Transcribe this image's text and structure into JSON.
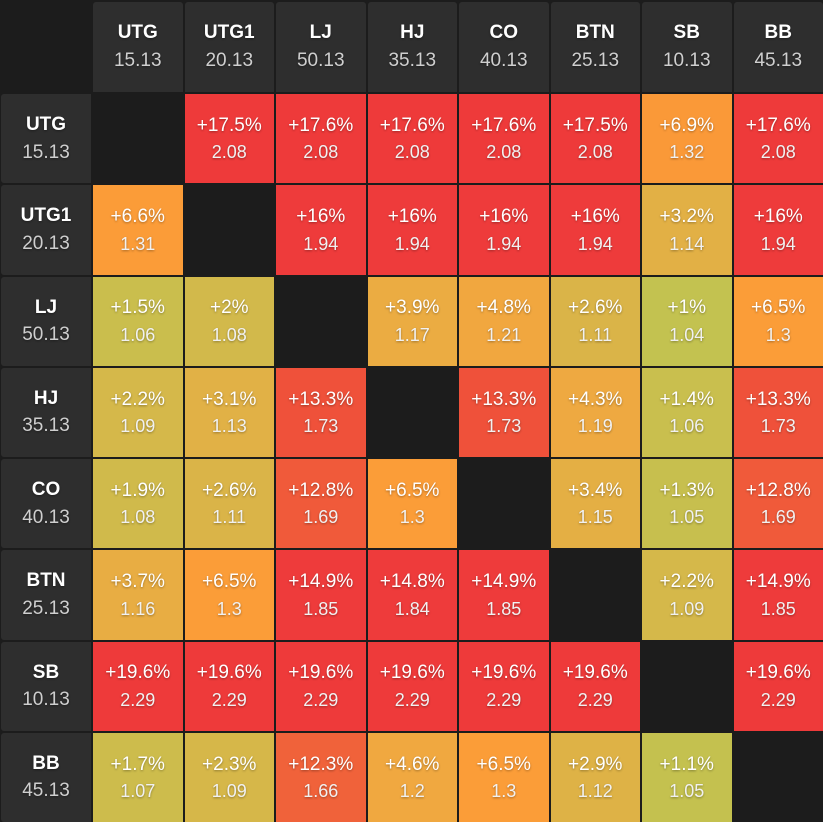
{
  "positions": [
    {
      "name": "UTG",
      "stack": "15.13"
    },
    {
      "name": "UTG1",
      "stack": "20.13"
    },
    {
      "name": "LJ",
      "stack": "50.13"
    },
    {
      "name": "HJ",
      "stack": "35.13"
    },
    {
      "name": "CO",
      "stack": "40.13"
    },
    {
      "name": "BTN",
      "stack": "25.13"
    },
    {
      "name": "SB",
      "stack": "10.13"
    },
    {
      "name": "BB",
      "stack": "45.13"
    }
  ],
  "chart_data": {
    "type": "heatmap",
    "rows": [
      "UTG",
      "UTG1",
      "LJ",
      "HJ",
      "CO",
      "BTN",
      "SB",
      "BB"
    ],
    "columns": [
      "UTG",
      "UTG1",
      "LJ",
      "HJ",
      "CO",
      "BTN",
      "SB",
      "BB"
    ],
    "cells": [
      [
        null,
        {
          "pct": "+17.5%",
          "mult": "2.08"
        },
        {
          "pct": "+17.6%",
          "mult": "2.08"
        },
        {
          "pct": "+17.6%",
          "mult": "2.08"
        },
        {
          "pct": "+17.6%",
          "mult": "2.08"
        },
        {
          "pct": "+17.5%",
          "mult": "2.08"
        },
        {
          "pct": "+6.9%",
          "mult": "1.32"
        },
        {
          "pct": "+17.6%",
          "mult": "2.08"
        }
      ],
      [
        {
          "pct": "+6.6%",
          "mult": "1.31"
        },
        null,
        {
          "pct": "+16%",
          "mult": "1.94"
        },
        {
          "pct": "+16%",
          "mult": "1.94"
        },
        {
          "pct": "+16%",
          "mult": "1.94"
        },
        {
          "pct": "+16%",
          "mult": "1.94"
        },
        {
          "pct": "+3.2%",
          "mult": "1.14"
        },
        {
          "pct": "+16%",
          "mult": "1.94"
        }
      ],
      [
        {
          "pct": "+1.5%",
          "mult": "1.06"
        },
        {
          "pct": "+2%",
          "mult": "1.08"
        },
        null,
        {
          "pct": "+3.9%",
          "mult": "1.17"
        },
        {
          "pct": "+4.8%",
          "mult": "1.21"
        },
        {
          "pct": "+2.6%",
          "mult": "1.11"
        },
        {
          "pct": "+1%",
          "mult": "1.04"
        },
        {
          "pct": "+6.5%",
          "mult": "1.3"
        }
      ],
      [
        {
          "pct": "+2.2%",
          "mult": "1.09"
        },
        {
          "pct": "+3.1%",
          "mult": "1.13"
        },
        {
          "pct": "+13.3%",
          "mult": "1.73"
        },
        null,
        {
          "pct": "+13.3%",
          "mult": "1.73"
        },
        {
          "pct": "+4.3%",
          "mult": "1.19"
        },
        {
          "pct": "+1.4%",
          "mult": "1.06"
        },
        {
          "pct": "+13.3%",
          "mult": "1.73"
        }
      ],
      [
        {
          "pct": "+1.9%",
          "mult": "1.08"
        },
        {
          "pct": "+2.6%",
          "mult": "1.11"
        },
        {
          "pct": "+12.8%",
          "mult": "1.69"
        },
        {
          "pct": "+6.5%",
          "mult": "1.3"
        },
        null,
        {
          "pct": "+3.4%",
          "mult": "1.15"
        },
        {
          "pct": "+1.3%",
          "mult": "1.05"
        },
        {
          "pct": "+12.8%",
          "mult": "1.69"
        }
      ],
      [
        {
          "pct": "+3.7%",
          "mult": "1.16"
        },
        {
          "pct": "+6.5%",
          "mult": "1.3"
        },
        {
          "pct": "+14.9%",
          "mult": "1.85"
        },
        {
          "pct": "+14.8%",
          "mult": "1.84"
        },
        {
          "pct": "+14.9%",
          "mult": "1.85"
        },
        null,
        {
          "pct": "+2.2%",
          "mult": "1.09"
        },
        {
          "pct": "+14.9%",
          "mult": "1.85"
        }
      ],
      [
        {
          "pct": "+19.6%",
          "mult": "2.29"
        },
        {
          "pct": "+19.6%",
          "mult": "2.29"
        },
        {
          "pct": "+19.6%",
          "mult": "2.29"
        },
        {
          "pct": "+19.6%",
          "mult": "2.29"
        },
        {
          "pct": "+19.6%",
          "mult": "2.29"
        },
        {
          "pct": "+19.6%",
          "mult": "2.29"
        },
        null,
        {
          "pct": "+19.6%",
          "mult": "2.29"
        }
      ],
      [
        {
          "pct": "+1.7%",
          "mult": "1.07"
        },
        {
          "pct": "+2.3%",
          "mult": "1.09"
        },
        {
          "pct": "+12.3%",
          "mult": "1.66"
        },
        {
          "pct": "+4.6%",
          "mult": "1.2"
        },
        {
          "pct": "+6.5%",
          "mult": "1.3"
        },
        {
          "pct": "+2.9%",
          "mult": "1.12"
        },
        {
          "pct": "+1.1%",
          "mult": "1.05"
        },
        null
      ]
    ],
    "color_scale": [
      {
        "value": 1.0,
        "color": "#c3c250"
      },
      {
        "value": 2.5,
        "color": "#d9b548"
      },
      {
        "value": 4.0,
        "color": "#ecab42"
      },
      {
        "value": 6.5,
        "color": "#fb9d38"
      },
      {
        "value": 12.5,
        "color": "#f0603a"
      },
      {
        "value": 14.5,
        "color": "#ee3b3b"
      },
      {
        "value": 20.0,
        "color": "#ee3a3a"
      }
    ],
    "diagonal_color": "#1c1c1c",
    "header_color": "#2e2e2e"
  }
}
